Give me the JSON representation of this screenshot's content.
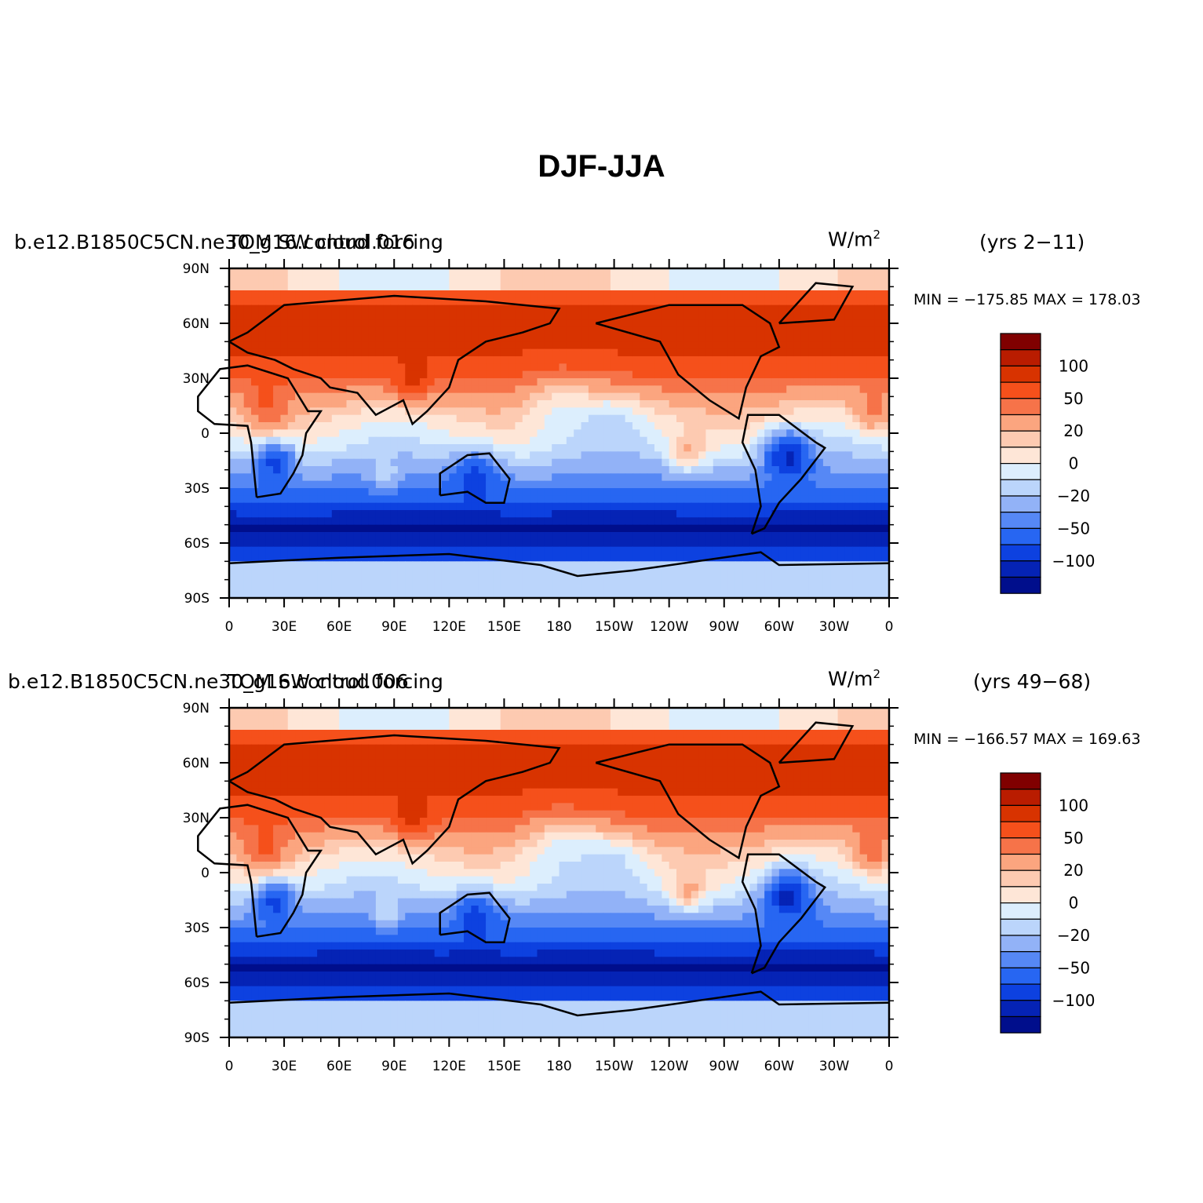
{
  "title": "DJF-JJA",
  "units_main": "W/m",
  "units_sup": "2",
  "lon_labels": [
    "0",
    "30E",
    "60E",
    "90E",
    "120E",
    "150E",
    "180",
    "150W",
    "120W",
    "90W",
    "60W",
    "30W",
    "0"
  ],
  "lat_labels": [
    "90N",
    "60N",
    "30N",
    "0",
    "30S",
    "60S",
    "90S"
  ],
  "colorbar": {
    "colors": [
      "#800000",
      "#b91c00",
      "#d83300",
      "#f5501b",
      "#f67349",
      "#fba57f",
      "#fdcab1",
      "#fee6d7",
      "#dceefd",
      "#bbd5fb",
      "#92b2f7",
      "#5688f5",
      "#2766f2",
      "#0d41e0",
      "#0523b5",
      "#000e8c"
    ],
    "labels": [
      "100",
      "50",
      "20",
      "0",
      "−20",
      "−50",
      "−100"
    ]
  },
  "panels": [
    {
      "case_name": "b.e12.B1850C5CN.ne30_g16.control.016",
      "variable": "TOM SW cloud forcing",
      "years": "(yrs 2−11)",
      "minmax": "MIN = −175.85  MAX = 178.03"
    },
    {
      "case_name": "b.e12.B1850C5CN.ne30_g16.control.006",
      "variable": "TOM SW cloud forcing",
      "years": "(yrs 49−68)",
      "minmax": "MIN = −166.57  MAX = 169.63"
    }
  ]
}
